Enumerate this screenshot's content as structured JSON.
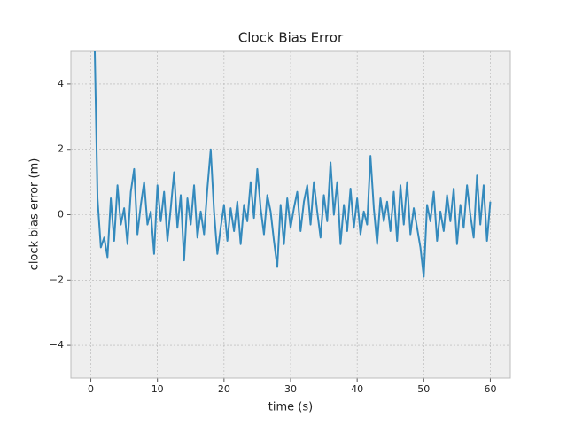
{
  "chart_data": {
    "type": "line",
    "title": "Clock Bias Error",
    "xlabel": "time (s)",
    "ylabel": "clock bias error (m)",
    "x": [
      0.5,
      1,
      1.5,
      2,
      2.5,
      3,
      3.5,
      4,
      4.5,
      5,
      5.5,
      6,
      6.5,
      7,
      7.5,
      8,
      8.5,
      9,
      9.5,
      10,
      10.5,
      11,
      11.5,
      12,
      12.5,
      13,
      13.5,
      14,
      14.5,
      15,
      15.5,
      16,
      16.5,
      17,
      17.5,
      18,
      18.5,
      19,
      19.5,
      20,
      20.5,
      21,
      21.5,
      22,
      22.5,
      23,
      23.5,
      24,
      24.5,
      25,
      25.5,
      26,
      26.5,
      27,
      27.5,
      28,
      28.5,
      29,
      29.5,
      30,
      30.5,
      31,
      31.5,
      32,
      32.5,
      33,
      33.5,
      34,
      34.5,
      35,
      35.5,
      36,
      36.5,
      37,
      37.5,
      38,
      38.5,
      39,
      39.5,
      40,
      40.5,
      41,
      41.5,
      42,
      42.5,
      43,
      43.5,
      44,
      44.5,
      45,
      45.5,
      46,
      46.5,
      47,
      47.5,
      48,
      48.5,
      49,
      49.5,
      50,
      50.5,
      51,
      51.5,
      52,
      52.5,
      53,
      53.5,
      54,
      54.5,
      55,
      55.5,
      56,
      56.5,
      57,
      57.5,
      58,
      58.5,
      59,
      59.5,
      60
    ],
    "series": [
      {
        "name": "clock bias error",
        "color": "#348abd",
        "values": [
          6,
          0.5,
          -1.0,
          -0.7,
          -1.3,
          0.5,
          -0.8,
          0.9,
          -0.3,
          0.2,
          -0.9,
          0.7,
          1.4,
          -0.6,
          0.3,
          1.0,
          -0.3,
          0.1,
          -1.2,
          0.9,
          -0.2,
          0.7,
          -0.8,
          0.2,
          1.3,
          -0.4,
          0.6,
          -1.4,
          0.5,
          -0.3,
          0.9,
          -0.7,
          0.1,
          -0.6,
          0.8,
          2.0,
          0.1,
          -1.2,
          -0.4,
          0.3,
          -0.8,
          0.2,
          -0.5,
          0.4,
          -0.9,
          0.3,
          -0.2,
          1.0,
          -0.1,
          1.4,
          0.2,
          -0.6,
          0.6,
          0.1,
          -0.8,
          -1.6,
          0.3,
          -0.9,
          0.5,
          -0.4,
          0.2,
          0.7,
          -0.5,
          0.4,
          0.9,
          -0.3,
          1.0,
          0.1,
          -0.7,
          0.6,
          -0.2,
          1.6,
          0.0,
          1.0,
          -0.9,
          0.3,
          -0.5,
          0.8,
          -0.4,
          0.5,
          -0.6,
          0.1,
          -0.3,
          1.8,
          0.2,
          -0.9,
          0.5,
          -0.2,
          0.4,
          -0.5,
          0.7,
          -0.8,
          0.9,
          -0.3,
          1.0,
          -0.6,
          0.2,
          -0.4,
          -1.0,
          -1.9,
          0.3,
          -0.2,
          0.7,
          -0.8,
          0.1,
          -0.5,
          0.6,
          -0.2,
          0.8,
          -0.9,
          0.3,
          -0.4,
          0.9,
          0.0,
          -0.7,
          1.2,
          -0.3,
          0.9,
          -0.8,
          0.4
        ]
      }
    ],
    "xlim": [
      -3,
      63
    ],
    "ylim": [
      -5,
      5
    ],
    "xticks": [
      0,
      10,
      20,
      30,
      40,
      50,
      60
    ],
    "yticks": [
      {
        "value": -4,
        "label": "−4"
      },
      {
        "value": -2,
        "label": "−2"
      },
      0,
      2,
      4
    ],
    "grid": true
  }
}
